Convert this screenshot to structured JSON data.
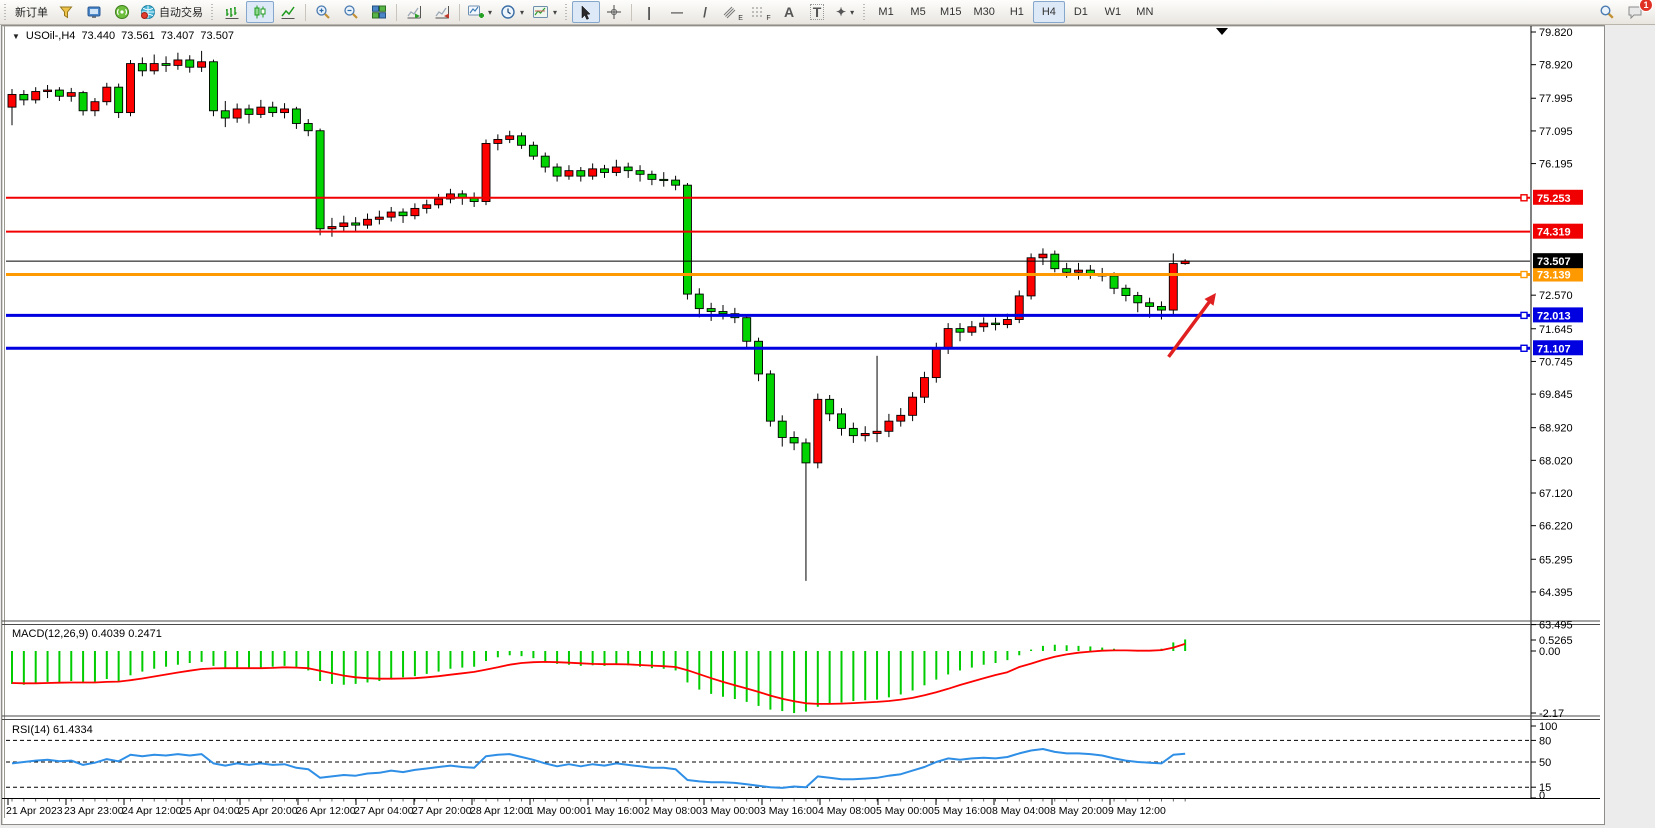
{
  "toolbar": {
    "new_order_label": "新订单",
    "auto_trading_label": "自动交易",
    "timeframes": [
      "M1",
      "M5",
      "M15",
      "M30",
      "H1",
      "H4",
      "D1",
      "W1",
      "MN"
    ],
    "active_timeframe": "H4",
    "notification_count": "1",
    "glyphs": {
      "dropdown": "▾",
      "vline": "|",
      "hline": "—",
      "trendline": "/",
      "channel_letter": "E",
      "fibo_letter": "F",
      "text_tool": "A",
      "label_tool": "T",
      "arrows_tool": "✦",
      "crosshair": "+"
    }
  },
  "chart": {
    "dropdown_glyph": "▼",
    "symbol": "USOil-,H4",
    "open": "73.440",
    "high": "73.561",
    "low": "73.407",
    "close": "73.507"
  },
  "indicators": {
    "macd": {
      "label": "MACD(12,26,9)",
      "main_value": "0.4039",
      "signal_value": "0.2471"
    },
    "rsi": {
      "label": "RSI(14)",
      "value": "61.4334"
    }
  },
  "chart_data": {
    "type": "candlestick",
    "symbol": "USOil",
    "timeframe": "H4",
    "bull_color": "#ff0000",
    "bear_color": "#00d300",
    "candles": {
      "open": [
        77.75,
        78.1,
        77.95,
        78.18,
        78.22,
        78.05,
        78.15,
        77.65,
        77.9,
        78.3,
        77.6,
        78.95,
        78.75,
        78.95,
        78.9,
        79.05,
        78.85,
        79.0,
        77.65,
        77.45,
        77.7,
        77.55,
        77.75,
        77.6,
        77.7,
        77.3,
        77.1,
        74.4,
        74.46,
        74.56,
        74.5,
        74.66,
        74.72,
        74.86,
        74.76,
        74.96,
        75.06,
        75.22,
        75.36,
        75.26,
        75.15,
        76.75,
        76.86,
        76.96,
        76.7,
        76.4,
        76.1,
        75.85,
        76.0,
        75.85,
        76.05,
        75.95,
        76.1,
        76.0,
        75.9,
        75.76,
        75.74,
        75.6,
        72.6,
        72.2,
        72.12,
        72.06,
        71.95,
        71.3,
        70.4,
        69.1,
        68.65,
        68.5,
        67.95,
        69.7,
        69.3,
        68.9,
        68.7,
        68.76,
        68.82,
        69.1,
        69.26,
        69.76,
        70.3,
        71.1,
        71.65,
        71.55,
        71.7,
        71.8,
        71.76,
        71.9,
        72.55,
        73.6,
        73.7,
        73.3,
        73.2,
        73.26,
        73.16,
        73.1,
        72.76,
        72.56,
        72.36,
        72.26,
        72.16,
        73.44
      ],
      "close": [
        78.1,
        77.95,
        78.18,
        78.22,
        78.05,
        78.15,
        77.65,
        77.9,
        78.3,
        77.6,
        78.95,
        78.75,
        78.95,
        78.9,
        79.05,
        78.85,
        79.0,
        77.65,
        77.45,
        77.7,
        77.55,
        77.75,
        77.6,
        77.7,
        77.3,
        77.1,
        74.4,
        74.46,
        74.56,
        74.5,
        74.66,
        74.72,
        74.86,
        74.76,
        74.96,
        75.06,
        75.22,
        75.36,
        75.26,
        75.15,
        76.75,
        76.86,
        76.96,
        76.7,
        76.4,
        76.1,
        75.85,
        76.0,
        75.85,
        76.05,
        75.95,
        76.1,
        76.0,
        75.9,
        75.76,
        75.74,
        75.6,
        72.6,
        72.2,
        72.12,
        72.06,
        71.95,
        71.3,
        70.4,
        69.1,
        68.65,
        68.5,
        67.95,
        69.7,
        69.3,
        68.9,
        68.7,
        68.76,
        68.82,
        69.1,
        69.26,
        69.76,
        70.3,
        71.1,
        71.65,
        71.55,
        71.7,
        71.8,
        71.76,
        71.9,
        72.55,
        73.6,
        73.7,
        73.3,
        73.2,
        73.26,
        73.16,
        73.1,
        72.76,
        72.56,
        72.36,
        72.26,
        72.16,
        73.44,
        73.507
      ],
      "high": [
        78.25,
        78.22,
        78.3,
        78.36,
        78.3,
        78.28,
        78.2,
        78.0,
        78.42,
        78.4,
        79.05,
        79.12,
        79.2,
        79.15,
        79.25,
        79.18,
        79.3,
        79.06,
        77.92,
        77.85,
        77.82,
        77.95,
        77.9,
        77.86,
        77.76,
        77.42,
        77.16,
        74.7,
        74.76,
        74.72,
        74.82,
        74.9,
        75.0,
        74.96,
        75.1,
        75.2,
        75.36,
        75.5,
        75.46,
        75.4,
        76.86,
        77.0,
        77.1,
        77.05,
        76.8,
        76.5,
        76.2,
        76.15,
        76.1,
        76.2,
        76.16,
        76.3,
        76.22,
        76.15,
        76.0,
        75.96,
        75.86,
        75.66,
        72.76,
        72.36,
        72.3,
        72.22,
        72.0,
        71.4,
        70.5,
        69.26,
        68.82,
        68.62,
        69.86,
        69.82,
        69.46,
        69.06,
        68.96,
        70.9,
        69.3,
        69.46,
        69.9,
        70.46,
        71.26,
        71.8,
        71.8,
        71.86,
        71.96,
        71.95,
        72.06,
        72.7,
        73.72,
        73.86,
        73.8,
        73.46,
        73.46,
        73.4,
        73.32,
        73.2,
        72.86,
        72.66,
        72.5,
        72.4,
        73.72,
        73.561
      ],
      "low": [
        77.25,
        77.8,
        77.85,
        78.0,
        77.92,
        77.9,
        77.52,
        77.5,
        77.8,
        77.45,
        77.5,
        78.6,
        78.65,
        78.72,
        78.78,
        78.7,
        78.72,
        77.5,
        77.2,
        77.32,
        77.3,
        77.45,
        77.48,
        77.44,
        77.15,
        76.95,
        74.22,
        74.18,
        74.34,
        74.3,
        74.4,
        74.52,
        74.6,
        74.56,
        74.66,
        74.82,
        74.96,
        75.1,
        75.06,
        75.0,
        75.05,
        76.56,
        76.76,
        76.6,
        76.3,
        75.95,
        75.7,
        75.75,
        75.7,
        75.75,
        75.8,
        75.85,
        75.8,
        75.7,
        75.6,
        75.56,
        75.46,
        72.45,
        71.96,
        71.86,
        71.9,
        71.8,
        71.1,
        70.2,
        68.95,
        68.4,
        68.3,
        64.7,
        67.8,
        69.1,
        68.7,
        68.5,
        68.54,
        68.52,
        68.66,
        68.95,
        69.1,
        69.6,
        70.16,
        70.95,
        71.3,
        71.45,
        71.56,
        71.6,
        71.66,
        71.8,
        72.45,
        73.4,
        73.2,
        73.05,
        73.0,
        73.02,
        72.95,
        72.6,
        72.4,
        72.1,
        71.95,
        71.9,
        72.05,
        73.407
      ]
    },
    "levels": [
      {
        "price": 75.253,
        "color": "#f00000",
        "width": 2,
        "handle": true
      },
      {
        "price": 74.319,
        "color": "#f00000",
        "width": 2,
        "handle": false
      },
      {
        "price": 73.139,
        "color": "#ff9900",
        "width": 3,
        "handle": true
      },
      {
        "price": 72.013,
        "color": "#0000e0",
        "width": 3,
        "handle": true
      },
      {
        "price": 71.107,
        "color": "#0000e0",
        "width": 3,
        "handle": true
      }
    ],
    "current_price": {
      "price": 73.507,
      "color": "#000000"
    },
    "price_ticks": [
      79.82,
      78.92,
      77.995,
      77.095,
      76.195,
      72.57,
      71.645,
      70.745,
      69.845,
      68.92,
      68.02,
      67.12,
      66.22,
      65.295,
      64.395,
      63.495
    ],
    "macd": {
      "bar_color": "#00cc00",
      "signal_color": "#ff0000",
      "axis_ticks": [
        "0.5265",
        "0.00",
        "-2.17"
      ],
      "values": [
        -1.15,
        -1.18,
        -1.12,
        -1.08,
        -1.1,
        -1.05,
        -1.12,
        -1.08,
        -0.98,
        -1.05,
        -0.85,
        -0.72,
        -0.62,
        -0.55,
        -0.48,
        -0.42,
        -0.38,
        -0.52,
        -0.6,
        -0.58,
        -0.62,
        -0.58,
        -0.55,
        -0.52,
        -0.6,
        -0.68,
        -1.05,
        -1.15,
        -1.18,
        -1.15,
        -1.1,
        -1.05,
        -0.98,
        -0.92,
        -0.88,
        -0.8,
        -0.72,
        -0.62,
        -0.58,
        -0.55,
        -0.35,
        -0.22,
        -0.15,
        -0.18,
        -0.25,
        -0.35,
        -0.45,
        -0.48,
        -0.52,
        -0.5,
        -0.52,
        -0.48,
        -0.5,
        -0.55,
        -0.6,
        -0.62,
        -0.68,
        -1.1,
        -1.35,
        -1.5,
        -1.6,
        -1.68,
        -1.78,
        -1.92,
        -2.05,
        -2.1,
        -2.17,
        -2.12,
        -1.95,
        -1.85,
        -1.8,
        -1.75,
        -1.72,
        -1.7,
        -1.62,
        -1.52,
        -1.38,
        -1.2,
        -1.0,
        -0.82,
        -0.68,
        -0.58,
        -0.48,
        -0.42,
        -0.32,
        -0.15,
        0.05,
        0.18,
        0.22,
        0.2,
        0.18,
        0.16,
        0.12,
        0.08,
        0.02,
        -0.02,
        0.02,
        0.08,
        0.3,
        0.4039
      ],
      "signal": [
        -1.12,
        -1.13,
        -1.13,
        -1.12,
        -1.11,
        -1.1,
        -1.1,
        -1.1,
        -1.08,
        -1.07,
        -1.02,
        -0.96,
        -0.89,
        -0.82,
        -0.75,
        -0.69,
        -0.63,
        -0.61,
        -0.6,
        -0.6,
        -0.6,
        -0.6,
        -0.59,
        -0.57,
        -0.58,
        -0.6,
        -0.69,
        -0.78,
        -0.86,
        -0.92,
        -0.95,
        -0.97,
        -0.97,
        -0.96,
        -0.95,
        -0.92,
        -0.88,
        -0.83,
        -0.78,
        -0.73,
        -0.65,
        -0.57,
        -0.48,
        -0.42,
        -0.39,
        -0.38,
        -0.39,
        -0.41,
        -0.43,
        -0.45,
        -0.46,
        -0.46,
        -0.47,
        -0.49,
        -0.51,
        -0.53,
        -0.56,
        -0.67,
        -0.81,
        -0.95,
        -1.08,
        -1.2,
        -1.31,
        -1.43,
        -1.56,
        -1.67,
        -1.76,
        -1.83,
        -1.85,
        -1.85,
        -1.84,
        -1.82,
        -1.8,
        -1.78,
        -1.75,
        -1.7,
        -1.64,
        -1.55,
        -1.44,
        -1.32,
        -1.19,
        -1.07,
        -0.95,
        -0.84,
        -0.74,
        -0.56,
        -0.44,
        -0.31,
        -0.2,
        -0.12,
        -0.06,
        -0.02,
        0.01,
        0.02,
        0.02,
        0.01,
        0.01,
        0.03,
        0.12,
        0.2471
      ]
    },
    "rsi": {
      "line_color": "#2f8fe6",
      "levels": [
        80,
        50,
        15
      ],
      "axis_ticks": [
        100,
        80,
        50,
        15,
        0
      ],
      "values": [
        48,
        50,
        52,
        53,
        51,
        52,
        46,
        49,
        54,
        51,
        60,
        58,
        60,
        59,
        61,
        59,
        61,
        48,
        45,
        48,
        46,
        48,
        46,
        47,
        42,
        40,
        28,
        30,
        32,
        31,
        34,
        35,
        38,
        36,
        39,
        41,
        43,
        45,
        43,
        42,
        58,
        60,
        61,
        57,
        53,
        48,
        44,
        47,
        44,
        47,
        45,
        48,
        46,
        44,
        42,
        42,
        40,
        25,
        23,
        22,
        22,
        21,
        19,
        17,
        15,
        14,
        16,
        15,
        30,
        28,
        26,
        26,
        27,
        28,
        31,
        33,
        38,
        43,
        50,
        55,
        53,
        55,
        56,
        55,
        57,
        62,
        66,
        68,
        64,
        62,
        62,
        61,
        59,
        55,
        52,
        50,
        49,
        48,
        60,
        61.4334
      ]
    },
    "time_labels": [
      "21 Apr 2023",
      "23 Apr 23:00",
      "24 Apr 12:00",
      "25 Apr 04:00",
      "25 Apr 20:00",
      "26 Apr 12:00",
      "27 Apr 04:00",
      "27 Apr 20:00",
      "28 Apr 12:00",
      "1 May 00:00",
      "1 May 16:00",
      "2 May 08:00",
      "3 May 00:00",
      "3 May 16:00",
      "4 May 08:00",
      "5 May 00:00",
      "5 May 16:00",
      "8 May 04:00",
      "8 May 20:00",
      "9 May 12:00"
    ],
    "annotation_arrow": {
      "from_bar": 97.6,
      "from_price": 70.87,
      "to_bar": 101.6,
      "to_price": 72.63,
      "color": "#e02020"
    }
  }
}
